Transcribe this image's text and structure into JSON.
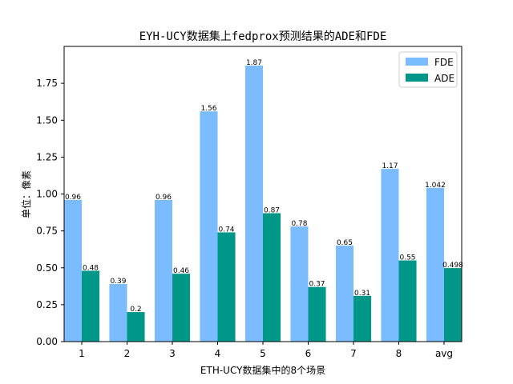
{
  "chart_data": {
    "type": "bar",
    "title": "EYH-UCY数据集上fedprox预测结果的ADE和FDE",
    "xlabel": "ETH-UCY数据集中的8个场景",
    "ylabel": "单位：像素",
    "categories": [
      "1",
      "2",
      "3",
      "4",
      "5",
      "6",
      "7",
      "8",
      "avg"
    ],
    "ylim": [
      0,
      2.0
    ],
    "yticks": [
      0.0,
      0.25,
      0.5,
      0.75,
      1.0,
      1.25,
      1.5,
      1.75
    ],
    "ytick_labels": [
      "0.00",
      "0.25",
      "0.50",
      "0.75",
      "1.00",
      "1.25",
      "1.50",
      "1.75"
    ],
    "legend_position": "top-right",
    "grid": false,
    "series": [
      {
        "name": "FDE",
        "color": "#7abcff",
        "values": [
          0.96,
          0.39,
          0.96,
          1.56,
          1.87,
          0.78,
          0.65,
          1.17,
          1.042
        ],
        "labels": [
          "0.96",
          "0.39",
          "0.96",
          "1.56",
          "1.87",
          "0.78",
          "0.65",
          "1.17",
          "1.042"
        ]
      },
      {
        "name": "ADE",
        "color": "#009688",
        "values": [
          0.48,
          0.2,
          0.46,
          0.74,
          0.87,
          0.37,
          0.31,
          0.55,
          0.498
        ],
        "labels": [
          "0.48",
          "0.2",
          "0.46",
          "0.74",
          "0.87",
          "0.37",
          "0.31",
          "0.55",
          "0.498"
        ]
      }
    ]
  }
}
